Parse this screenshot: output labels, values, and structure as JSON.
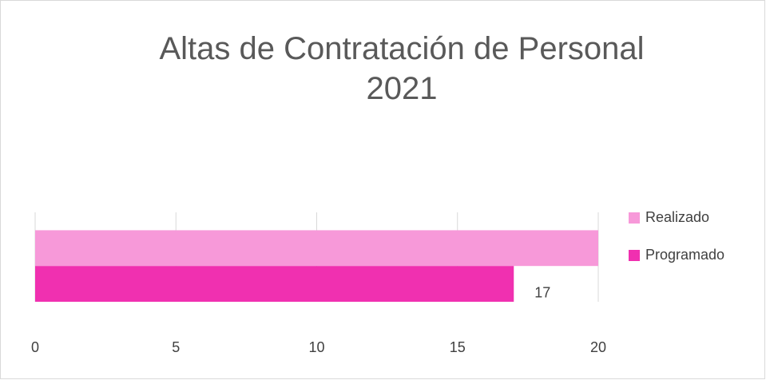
{
  "chart_data": {
    "type": "hbar",
    "title": "Altas de Contratación de Personal 2021",
    "categories": [
      null
    ],
    "series": [
      {
        "name": "Realizado",
        "color": "#f799d9",
        "values": [
          20
        ],
        "data_labels": false
      },
      {
        "name": "Programado",
        "color": "#f030b0",
        "values": [
          17
        ],
        "data_labels": true
      }
    ],
    "xlim": [
      0,
      20
    ],
    "xticks": [
      0,
      5,
      10,
      15,
      20
    ],
    "grid": true,
    "legend": "right"
  }
}
